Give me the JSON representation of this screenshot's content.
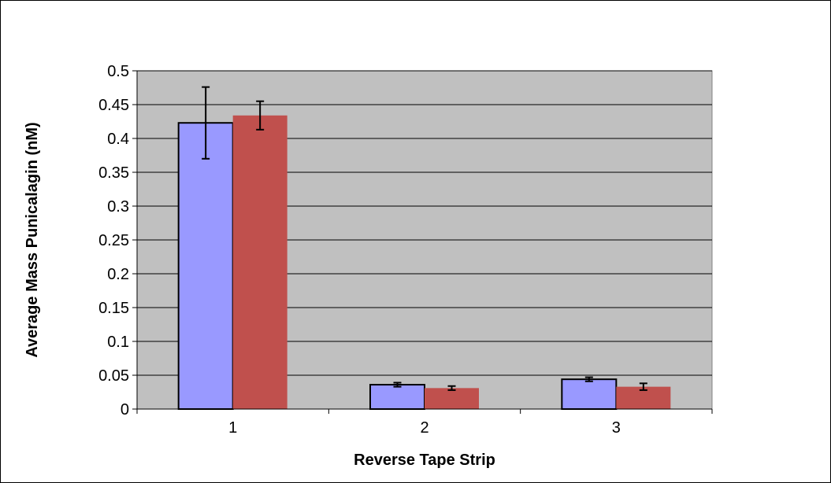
{
  "chart_data": {
    "type": "bar",
    "xlabel": "Reverse Tape Strip",
    "ylabel": "Average Mass Punicalagin (nM)",
    "categories": [
      "1",
      "2",
      "3"
    ],
    "ylim": [
      0,
      0.5
    ],
    "ytick_step": 0.05,
    "y_tick_labels": [
      "0",
      "0.05",
      "0.1",
      "0.15",
      "0.2",
      "0.25",
      "0.3",
      "0.35",
      "0.4",
      "0.45",
      "0.5"
    ],
    "grid": true,
    "plot_background": "#C0C0C0",
    "series": [
      {
        "color": "#9999FF",
        "outline": "#000000",
        "values": [
          0.423,
          0.036,
          0.044
        ],
        "errors": [
          0.053,
          0.003,
          0.003
        ]
      },
      {
        "color": "#C0504D",
        "outline": "none",
        "values": [
          0.434,
          0.031,
          0.033
        ],
        "errors": [
          0.021,
          0.003,
          0.005
        ]
      }
    ]
  }
}
